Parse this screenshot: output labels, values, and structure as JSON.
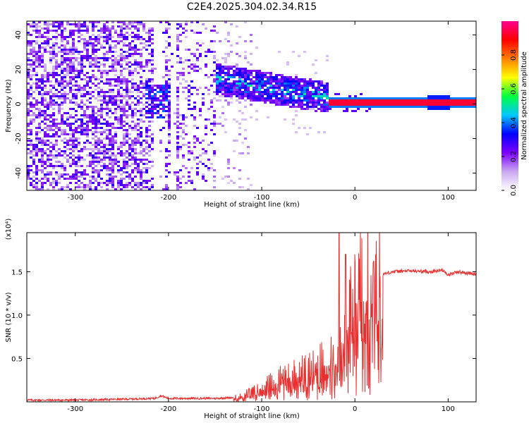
{
  "title": "C2E4.2025.304.02.34.R15",
  "chart_data": [
    {
      "type": "heatmap",
      "name": "spectrogram",
      "xlabel": "Height of straight line (km)",
      "ylabel": "Frequency (Hz)",
      "xlim": [
        -352,
        130
      ],
      "ylim": [
        -50,
        48
      ],
      "xticks": [
        -300,
        -200,
        -100,
        0,
        100
      ],
      "xtick_labels": [
        "-300",
        "-200",
        "-100",
        "0",
        "100"
      ],
      "yticks": [
        -40,
        -20,
        0,
        20,
        40
      ],
      "ytick_labels": [
        "-40",
        "-20",
        "0",
        "20",
        "40"
      ],
      "carrier_start_km": -30,
      "carrier_freq_hz": 1.5,
      "colorbar": {
        "label": "Normalized spectral amplitude",
        "range": [
          0,
          1
        ],
        "ticks": [
          0.0,
          0.2,
          0.4,
          0.6,
          0.8
        ],
        "tick_labels": [
          "0.0",
          "0.2",
          "0.4",
          "0.6",
          "0.8"
        ],
        "colors": [
          "#ffffff",
          "#c9a8f0",
          "#7d00ff",
          "#0000ff",
          "#00c8ff",
          "#00ff40",
          "#ffff00",
          "#ff8000",
          "#ff0000",
          "#ff0090"
        ]
      }
    },
    {
      "type": "line",
      "name": "snr",
      "xlabel": "Height of straight line (km)",
      "ylabel": "SNR (10 * v/v)",
      "scale_label": "(x10⁴)",
      "xlim": [
        -352,
        130
      ],
      "ylim": [
        0,
        1.95
      ],
      "xticks": [
        -300,
        -200,
        -100,
        0,
        100
      ],
      "xtick_labels": [
        "-300",
        "-200",
        "-100",
        "0",
        "100"
      ],
      "yticks": [
        0.5,
        1.0,
        1.5
      ],
      "ytick_labels": [
        "0.5",
        "1.0",
        "1.5"
      ],
      "color": "#e83030",
      "series": [
        {
          "name": "SNR",
          "x": [
            -352,
            -300,
            -250,
            -215,
            -208,
            -200,
            -170,
            -150,
            -130,
            -110,
            -90,
            -70,
            -50,
            -40,
            -30,
            -20,
            -15,
            -10,
            0,
            10,
            20,
            30,
            40,
            60,
            80,
            95,
            100,
            110,
            130
          ],
          "y": [
            0.02,
            0.02,
            0.03,
            0.04,
            0.07,
            0.04,
            0.04,
            0.04,
            0.05,
            0.1,
            0.2,
            0.28,
            0.34,
            0.38,
            0.42,
            0.48,
            0.62,
            0.8,
            1.05,
            1.3,
            1.42,
            1.47,
            1.5,
            1.51,
            1.5,
            1.52,
            1.46,
            1.5,
            1.47
          ]
        }
      ],
      "peaks": [
        {
          "x": -17,
          "y": 1.95
        },
        {
          "x": -10,
          "y": 1.7
        },
        {
          "x": 20,
          "y": 1.62
        }
      ]
    }
  ]
}
